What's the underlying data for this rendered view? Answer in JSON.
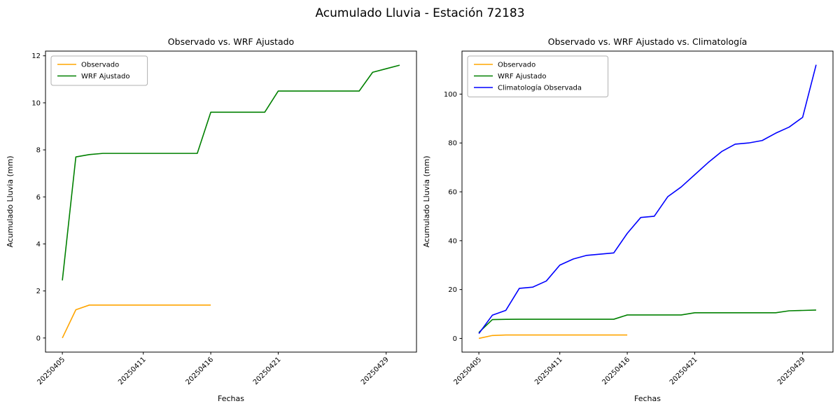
{
  "figure": {
    "title": "Acumulado Lluvia - Estación 72183"
  },
  "chart_data": [
    {
      "type": "line",
      "title": "Observado vs. WRF Ajustado",
      "xlabel": "Fechas",
      "ylabel": "Acumulado Lluvia (mm)",
      "grid": false,
      "legend_position": "upper left",
      "x": [
        "20250405",
        "20250406",
        "20250407",
        "20250408",
        "20250409",
        "20250410",
        "20250411",
        "20250412",
        "20250413",
        "20250414",
        "20250415",
        "20250416",
        "20250417",
        "20250418",
        "20250419",
        "20250420",
        "20250421",
        "20250422",
        "20250423",
        "20250424",
        "20250425",
        "20250426",
        "20250427",
        "20250428",
        "20250429",
        "20250430"
      ],
      "xlim": [
        -1.25,
        26.25
      ],
      "ylim": [
        -0.6,
        12.2
      ],
      "yticks": [
        0,
        2,
        4,
        6,
        8,
        10,
        12
      ],
      "xtick_indices": [
        0,
        6,
        11,
        16,
        24
      ],
      "xtick_labels": [
        "20250405",
        "20250411",
        "20250416",
        "20250421",
        "20250429"
      ],
      "series": [
        {
          "name": "Observado",
          "color": "#FFA500",
          "values": [
            0,
            1.2,
            1.4,
            1.4,
            1.4,
            1.4,
            1.4,
            1.4,
            1.4,
            1.4,
            1.4,
            1.4
          ]
        },
        {
          "name": "WRF Ajustado",
          "color": "#008000",
          "values": [
            2.45,
            7.7,
            7.8,
            7.85,
            7.85,
            7.85,
            7.85,
            7.85,
            7.85,
            7.85,
            7.85,
            9.6,
            9.6,
            9.6,
            9.6,
            9.6,
            10.5,
            10.5,
            10.5,
            10.5,
            10.5,
            10.5,
            10.5,
            11.3,
            11.45,
            11.6
          ]
        }
      ]
    },
    {
      "type": "line",
      "title": "Observado vs. WRF Ajustado vs. Climatología",
      "xlabel": "Fechas",
      "ylabel": "Acumulado Lluvia (mm)",
      "grid": false,
      "legend_position": "upper left",
      "x": [
        "20250405",
        "20250406",
        "20250407",
        "20250408",
        "20250409",
        "20250410",
        "20250411",
        "20250412",
        "20250413",
        "20250414",
        "20250415",
        "20250416",
        "20250417",
        "20250418",
        "20250419",
        "20250420",
        "20250421",
        "20250422",
        "20250423",
        "20250424",
        "20250425",
        "20250426",
        "20250427",
        "20250428",
        "20250429",
        "20250430"
      ],
      "xlim": [
        -1.25,
        26.25
      ],
      "ylim": [
        -5.6,
        117.6
      ],
      "yticks": [
        0,
        20,
        40,
        60,
        80,
        100
      ],
      "xtick_indices": [
        0,
        6,
        11,
        16,
        24
      ],
      "xtick_labels": [
        "20250405",
        "20250411",
        "20250416",
        "20250421",
        "20250429"
      ],
      "series": [
        {
          "name": "Observado",
          "color": "#FFA500",
          "values": [
            0,
            1.2,
            1.4,
            1.4,
            1.4,
            1.4,
            1.4,
            1.4,
            1.4,
            1.4,
            1.4,
            1.4
          ]
        },
        {
          "name": "WRF Ajustado",
          "color": "#008000",
          "values": [
            2.45,
            7.7,
            7.8,
            7.85,
            7.85,
            7.85,
            7.85,
            7.85,
            7.85,
            7.85,
            7.85,
            9.6,
            9.6,
            9.6,
            9.6,
            9.6,
            10.5,
            10.5,
            10.5,
            10.5,
            10.5,
            10.5,
            10.5,
            11.3,
            11.45,
            11.6
          ]
        },
        {
          "name": "Climatología Observada",
          "color": "#0000FF",
          "values": [
            2,
            9.5,
            11.5,
            20.5,
            21,
            23.5,
            30,
            32.5,
            34,
            34.5,
            35,
            43,
            49.5,
            50,
            58,
            62,
            67,
            72,
            76.5,
            79.5,
            80,
            81,
            84,
            86.5,
            90.5,
            112
          ]
        }
      ]
    }
  ]
}
